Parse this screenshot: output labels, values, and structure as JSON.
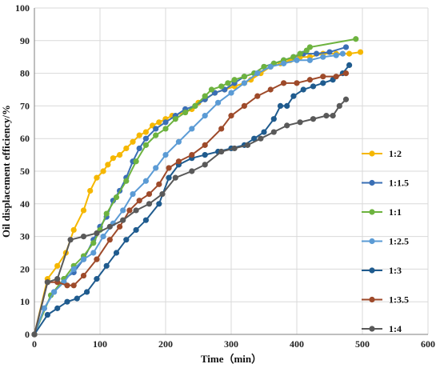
{
  "chart_data": {
    "type": "line",
    "xlabel": "Time（min）",
    "ylabel": "Oil displacement efficiency/%",
    "xlim": [
      0,
      600
    ],
    "ylim": [
      0,
      100
    ],
    "xticks": [
      0,
      100,
      200,
      300,
      400,
      500,
      600
    ],
    "yticks": [
      0,
      10,
      20,
      30,
      40,
      50,
      60,
      70,
      80,
      90,
      100
    ],
    "grid": true,
    "legend_position": "right",
    "series": [
      {
        "name": "1:2",
        "color": "#F5B700",
        "points": [
          [
            0,
            0
          ],
          [
            20,
            17
          ],
          [
            35,
            21
          ],
          [
            48,
            25
          ],
          [
            60,
            32
          ],
          [
            75,
            38
          ],
          [
            85,
            44
          ],
          [
            95,
            48
          ],
          [
            105,
            50
          ],
          [
            112,
            52
          ],
          [
            120,
            54
          ],
          [
            130,
            55
          ],
          [
            140,
            57
          ],
          [
            150,
            59
          ],
          [
            160,
            61
          ],
          [
            170,
            62
          ],
          [
            180,
            64
          ],
          [
            190,
            65
          ],
          [
            200,
            66
          ],
          [
            210,
            67
          ],
          [
            230,
            68
          ],
          [
            240,
            69
          ],
          [
            250,
            71
          ],
          [
            260,
            72
          ],
          [
            275,
            74
          ],
          [
            290,
            75
          ],
          [
            305,
            76
          ],
          [
            320,
            77
          ],
          [
            330,
            78
          ],
          [
            345,
            80
          ],
          [
            360,
            82
          ],
          [
            375,
            83
          ],
          [
            390,
            84
          ],
          [
            405,
            85
          ],
          [
            420,
            85
          ],
          [
            440,
            86
          ],
          [
            460,
            86
          ],
          [
            480,
            86
          ],
          [
            497,
            86.5
          ]
        ]
      },
      {
        "name": "1:1.5",
        "color": "#3A6FB5",
        "points": [
          [
            0,
            0
          ],
          [
            15,
            8
          ],
          [
            30,
            13
          ],
          [
            45,
            17
          ],
          [
            60,
            19
          ],
          [
            75,
            23
          ],
          [
            90,
            29
          ],
          [
            100,
            33
          ],
          [
            110,
            36
          ],
          [
            120,
            41
          ],
          [
            130,
            44
          ],
          [
            140,
            48
          ],
          [
            150,
            53
          ],
          [
            160,
            57
          ],
          [
            170,
            60
          ],
          [
            185,
            63
          ],
          [
            200,
            65
          ],
          [
            215,
            67
          ],
          [
            230,
            69
          ],
          [
            245,
            70
          ],
          [
            260,
            72
          ],
          [
            275,
            74
          ],
          [
            290,
            75
          ],
          [
            305,
            77
          ],
          [
            320,
            79
          ],
          [
            335,
            80
          ],
          [
            350,
            82
          ],
          [
            365,
            83
          ],
          [
            380,
            84
          ],
          [
            395,
            85
          ],
          [
            410,
            86
          ],
          [
            430,
            86
          ],
          [
            450,
            86.5
          ],
          [
            475,
            88
          ]
        ]
      },
      {
        "name": "1:1",
        "color": "#6DB33F",
        "points": [
          [
            0,
            0
          ],
          [
            25,
            12
          ],
          [
            45,
            17
          ],
          [
            60,
            21
          ],
          [
            75,
            24
          ],
          [
            90,
            28
          ],
          [
            100,
            32
          ],
          [
            110,
            37
          ],
          [
            125,
            42
          ],
          [
            140,
            47
          ],
          [
            155,
            53
          ],
          [
            170,
            58
          ],
          [
            185,
            61
          ],
          [
            200,
            63
          ],
          [
            215,
            66
          ],
          [
            230,
            68
          ],
          [
            245,
            70
          ],
          [
            260,
            73
          ],
          [
            270,
            75
          ],
          [
            285,
            76
          ],
          [
            295,
            77
          ],
          [
            305,
            78
          ],
          [
            320,
            79
          ],
          [
            335,
            80
          ],
          [
            350,
            82
          ],
          [
            365,
            83
          ],
          [
            380,
            84
          ],
          [
            395,
            85
          ],
          [
            405,
            86
          ],
          [
            415,
            87
          ],
          [
            420,
            88
          ],
          [
            490,
            90.5
          ]
        ]
      },
      {
        "name": "1:2.5",
        "color": "#5B9BD5",
        "points": [
          [
            0,
            0
          ],
          [
            15,
            8
          ],
          [
            30,
            13
          ],
          [
            45,
            16
          ],
          [
            60,
            20
          ],
          [
            75,
            23
          ],
          [
            90,
            25
          ],
          [
            105,
            30
          ],
          [
            120,
            34
          ],
          [
            135,
            38
          ],
          [
            150,
            43
          ],
          [
            170,
            47
          ],
          [
            185,
            51
          ],
          [
            200,
            55
          ],
          [
            220,
            59
          ],
          [
            240,
            63
          ],
          [
            260,
            67
          ],
          [
            280,
            71
          ],
          [
            300,
            74
          ],
          [
            320,
            77
          ],
          [
            340,
            80
          ],
          [
            360,
            82
          ],
          [
            380,
            83
          ],
          [
            400,
            84
          ],
          [
            420,
            84
          ],
          [
            440,
            85
          ],
          [
            460,
            85.5
          ],
          [
            470,
            86
          ]
        ]
      },
      {
        "name": "1:3",
        "color": "#1F5B8E",
        "points": [
          [
            0,
            0
          ],
          [
            20,
            6
          ],
          [
            35,
            8
          ],
          [
            50,
            10
          ],
          [
            65,
            11
          ],
          [
            80,
            13
          ],
          [
            95,
            17
          ],
          [
            110,
            21
          ],
          [
            125,
            25
          ],
          [
            140,
            29
          ],
          [
            155,
            32
          ],
          [
            170,
            35
          ],
          [
            190,
            40
          ],
          [
            205,
            48
          ],
          [
            220,
            52
          ],
          [
            240,
            54
          ],
          [
            260,
            55
          ],
          [
            280,
            56
          ],
          [
            300,
            57
          ],
          [
            320,
            58
          ],
          [
            335,
            60
          ],
          [
            350,
            62
          ],
          [
            365,
            66
          ],
          [
            375,
            70
          ],
          [
            385,
            70
          ],
          [
            395,
            73
          ],
          [
            410,
            75
          ],
          [
            425,
            76
          ],
          [
            440,
            77
          ],
          [
            455,
            78
          ],
          [
            470,
            80
          ],
          [
            480,
            82.5
          ]
        ]
      },
      {
        "name": "1:3.5",
        "color": "#9E4A2A",
        "points": [
          [
            0,
            0
          ],
          [
            20,
            16
          ],
          [
            35,
            16
          ],
          [
            50,
            15
          ],
          [
            60,
            15
          ],
          [
            75,
            18
          ],
          [
            95,
            23
          ],
          [
            115,
            29
          ],
          [
            130,
            33
          ],
          [
            145,
            38
          ],
          [
            160,
            41
          ],
          [
            175,
            43
          ],
          [
            190,
            46
          ],
          [
            205,
            51
          ],
          [
            220,
            53
          ],
          [
            240,
            55
          ],
          [
            260,
            58
          ],
          [
            285,
            63
          ],
          [
            300,
            67
          ],
          [
            320,
            70
          ],
          [
            340,
            73
          ],
          [
            360,
            75
          ],
          [
            380,
            77
          ],
          [
            400,
            77
          ],
          [
            420,
            78
          ],
          [
            440,
            79
          ],
          [
            460,
            79
          ],
          [
            475,
            80
          ]
        ]
      },
      {
        "name": "1:4",
        "color": "#595959",
        "points": [
          [
            0,
            0
          ],
          [
            20,
            16
          ],
          [
            35,
            17
          ],
          [
            55,
            29
          ],
          [
            75,
            30
          ],
          [
            95,
            31
          ],
          [
            115,
            33
          ],
          [
            135,
            35
          ],
          [
            155,
            38
          ],
          [
            175,
            40
          ],
          [
            195,
            43
          ],
          [
            215,
            48
          ],
          [
            240,
            50
          ],
          [
            260,
            52
          ],
          [
            285,
            56
          ],
          [
            305,
            57
          ],
          [
            325,
            58
          ],
          [
            345,
            60
          ],
          [
            365,
            62
          ],
          [
            385,
            64
          ],
          [
            405,
            65
          ],
          [
            425,
            66
          ],
          [
            445,
            67
          ],
          [
            455,
            67
          ],
          [
            465,
            70
          ],
          [
            475,
            72
          ]
        ]
      }
    ]
  }
}
